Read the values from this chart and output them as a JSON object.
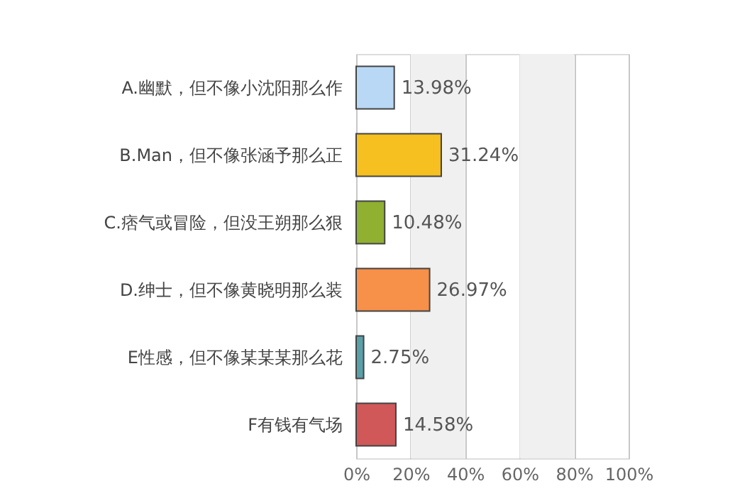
{
  "chart_data": {
    "type": "bar",
    "orientation": "horizontal",
    "categories": [
      "A.幽默，但不像小沈阳那么作",
      "B.Man，但不像张涵予那么正",
      "C.痞气或冒险，但没王朔那么狠",
      "D.绅士，但不像黄晓明那么装",
      "E性感，但不像某某某那么花",
      "F有钱有气场"
    ],
    "values": [
      13.98,
      31.24,
      10.48,
      26.97,
      2.75,
      14.58
    ],
    "colors": [
      "#b8d8f5",
      "#f5c020",
      "#8fb030",
      "#f79048",
      "#5aa0a8",
      "#d05858"
    ],
    "value_labels": [
      "13.98%",
      "31.24%",
      "10.48%",
      "26.97%",
      "2.75%",
      "14.58%"
    ],
    "xlim": [
      0,
      100
    ],
    "xticks": [
      {
        "value": 0,
        "label": "0%"
      },
      {
        "value": 20,
        "label": "20%"
      },
      {
        "value": 40,
        "label": "40%"
      },
      {
        "value": 60,
        "label": "60%"
      },
      {
        "value": 80,
        "label": "80%"
      },
      {
        "value": 100,
        "label": "100%"
      }
    ],
    "bands": [
      {
        "axis": "x",
        "from": 20,
        "to": 40,
        "color": "#f0f0f0"
      },
      {
        "axis": "x",
        "from": 60,
        "to": 80,
        "color": "#f0f0f0"
      }
    ],
    "grid": "x"
  }
}
